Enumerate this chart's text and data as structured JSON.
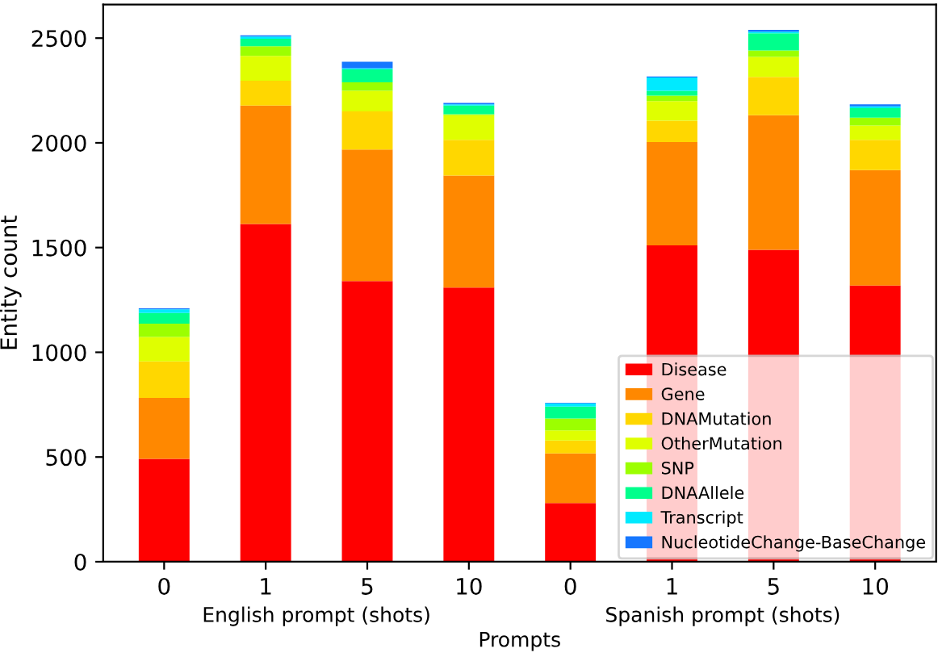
{
  "chart_data": {
    "type": "bar",
    "stacked": true,
    "xlabel": "Prompts",
    "ylabel": "Entity count",
    "categories": [
      "0",
      "1",
      "5",
      "10",
      "0",
      "1",
      "5",
      "10"
    ],
    "annotations": [
      "English prompt (shots)",
      "Spanish prompt (shots)"
    ],
    "ylim": [
      0,
      2660
    ],
    "yticks": [
      0,
      500,
      1000,
      1500,
      2000,
      2500
    ],
    "grid": false,
    "legend": "bottom right",
    "series": [
      {
        "name": "Disease",
        "color": "#ff0000",
        "values": [
          491,
          1613,
          1340,
          1309,
          280,
          1510,
          1489,
          1319
        ]
      },
      {
        "name": "Gene",
        "color": "#ff8800",
        "values": [
          291,
          565,
          628,
          535,
          237,
          494,
          643,
          551
        ]
      },
      {
        "name": "DNAMutation",
        "color": "#ffd700",
        "values": [
          175,
          119,
          182,
          170,
          62,
          102,
          183,
          144
        ]
      },
      {
        "name": "OtherMutation",
        "color": "#dfff00",
        "values": [
          116,
          118,
          98,
          118,
          48,
          93,
          95,
          69
        ]
      },
      {
        "name": "SNP",
        "color": "#9cff00",
        "values": [
          64,
          46,
          41,
          5,
          57,
          26,
          31,
          37
        ]
      },
      {
        "name": "DNAAllele",
        "color": "#00ff8c",
        "values": [
          51,
          36,
          62,
          41,
          57,
          23,
          82,
          46
        ]
      },
      {
        "name": "Transcript",
        "color": "#00eaff",
        "values": [
          17,
          11,
          5,
          6,
          15,
          64,
          8,
          8
        ]
      },
      {
        "name": "NucleotideChange-BaseChange",
        "color": "#1677ff",
        "values": [
          5,
          5,
          31,
          7,
          3,
          5,
          8,
          10
        ]
      }
    ]
  }
}
